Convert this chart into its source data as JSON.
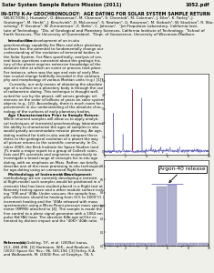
{
  "page_bg": "#f0f0eb",
  "title_bar_bg": "#bbbbbb",
  "title_bar_text": "Solar System Sample Return Mission (2011)",
  "title_bar_right": "1052.pdf",
  "header_bold": "IN-SITU K-Ar GEOCHRONOLOGY:  AGE DATING FOR SOLAR SYSTEM SAMPLE RETURN",
  "header_line2": "SELECTION. J. Hurowitz¹, O. Aharonson², M. Channon², S. Chemtob², M. Coleman¹, J. Eiler², K. Farley², J.",
  "header_line3": "Grotzinger², M. Hecht¹, J. Kirschvink², D. McLennan³, S. Nealson⁴, G. Rossman², M. Siebach², W. Stockton⁵, R. Wur-",
  "header_line4": "schmig², P. Vizcaino², W. Zimmerman¹, E. Betts¹, C. Johnson¹.  ¹Jet Propulsion Laboratory, California Insti-",
  "header_line5": "tute of Technology.  ²Div. of Geological and Planetary Sciences, California Institute of Technology.  ³School of",
  "header_line6": "Earth Sciences, The University of Queensland.  ⁴Dept. of Geoscience, University of Wisconsin-Madison.",
  "left_col_lines": [
    "     Introduction: The development of an in-situ",
    "geochronology capability for Mars and other planetary",
    "surfaces has the potential to fundamentally change our",
    "understanding of the evolution of terrestrial bodies in",
    "the Solar System. For Mars specifically, analysis of sev-",
    "eral basic questions consistent about the geologic his-",
    "tory of the planet requires extensive knowledge of the",
    "absolute time at which an event or process took place.",
    "For instance, when was the age and rate of early Mar-",
    "tian crustal change faithfully recorded in the stratiura-",
    "phy and morphology of various Martian units (e.g.) [1]?",
    "     Currently, our only means of obtaining the absolute",
    "age of a surface on a planetary body is through the use",
    "of radiometric dating. This technique is thought well-",
    "suited for use by the planet, still serves geologic ref-",
    "erences on the order of billions of years on solar system",
    "objects (e.g., [2]). Accordingly, there is much room for im-",
    "provements in our understanding of the absolute chro-",
    "nology of the surfaces of early planetary bodies.",
    "     Age Characterization Prior to Sample Return:",
    "While returned samples will allow us to apply analyti-",
    "cal techniques of terrestrial geochronology laboratories,",
    "the ability to characterize the ages of samples in situ",
    "would greatly accommodate mission planning. An age-",
    "dating method for both in-situ would compare these",
    "dates to the geological evolution of a planet the way",
    "all picture returns to the scientific community. In Oc-",
    "tober 2009, the Keck Institute for Space Studies (and",
    "JPL made a major report to a group of Caltech scien-",
    "tists and JPL scientists and engineers respectively to",
    "investigate a broad range of concepts for in-situ age",
    "dating, with an emphasis on Mars. Rather, we briefly",
    "describe one of the more promising in-situ techniques",
    "for age-dating using an unmanned flight hardware.",
    "     Methodology of Instrument Development: In this",
    "methodology we are currently developing a terrestri-",
    "al flight-model such samples would be positioned in a",
    "creosote that has been studied placed in a flight test at a",
    "Kennedy testing-space and a other module surface includ-",
    "ing ¹39K and ¹40Ar. Under vacuum, the sample frac-",
    "plex electronic should be heating from (0.5 to 1000°C) in",
    "increment heating and the ¹40Ar released with mass",
    "spectrometer using a Micro Pirani pressure mass spectro-",
    "meter (MPMS) attached to [4]. The sample is made the",
    "fine control to a plane signal generator with a 1064 nm",
    "pulse Nd:YAG laser. The absolute K/Ar-age will be es-",
    "timated by distinct impact and the ¹40K+¹40Ar ratio"
  ],
  "right_top_lines": [
    "analyzed on the MPMS. Mostly each ages can then be",
    "calculated from measured sample pulse-ratios. To date,",
    "we have built internal simulation systems that have",
    "made measurements demonstrating: (1) low-P Ar",
    "release, (2) sample-spike capabilities, (3) quench",
    "plans transitions, and (4) K-isotope measurements by",
    "laser ablation at < 1 wt% levels. Example results are",
    "shown in Figs. 1a, B."
  ],
  "caption_lines": [
    "Fig. 1a: (upper) Relative MPMS signal vs. time during Ar",
    "release, consisting of 8 different pulses using the 1064 Nd:YAG",
    "laser, (lower) Ar amount as a meaningfully plot (no error",
    "barring or fit attempt in a commanded heat sequence)."
  ],
  "ref_bold": "References:",
  "ref_lines": [
    "[1] Golding, T.P., et al. (2009a) Icarus,",
    "211, 484-496. [2] Hartmann, W.K., and Neukum, G.",
    "(2001) Space Sci. Rev., 96, 165-194. [3] Farley, K.A.",
    "and Walksworth, M. (2000) Rev. of Geophys. 78, 5."
  ],
  "argon40_label": "Argon-40 release"
}
